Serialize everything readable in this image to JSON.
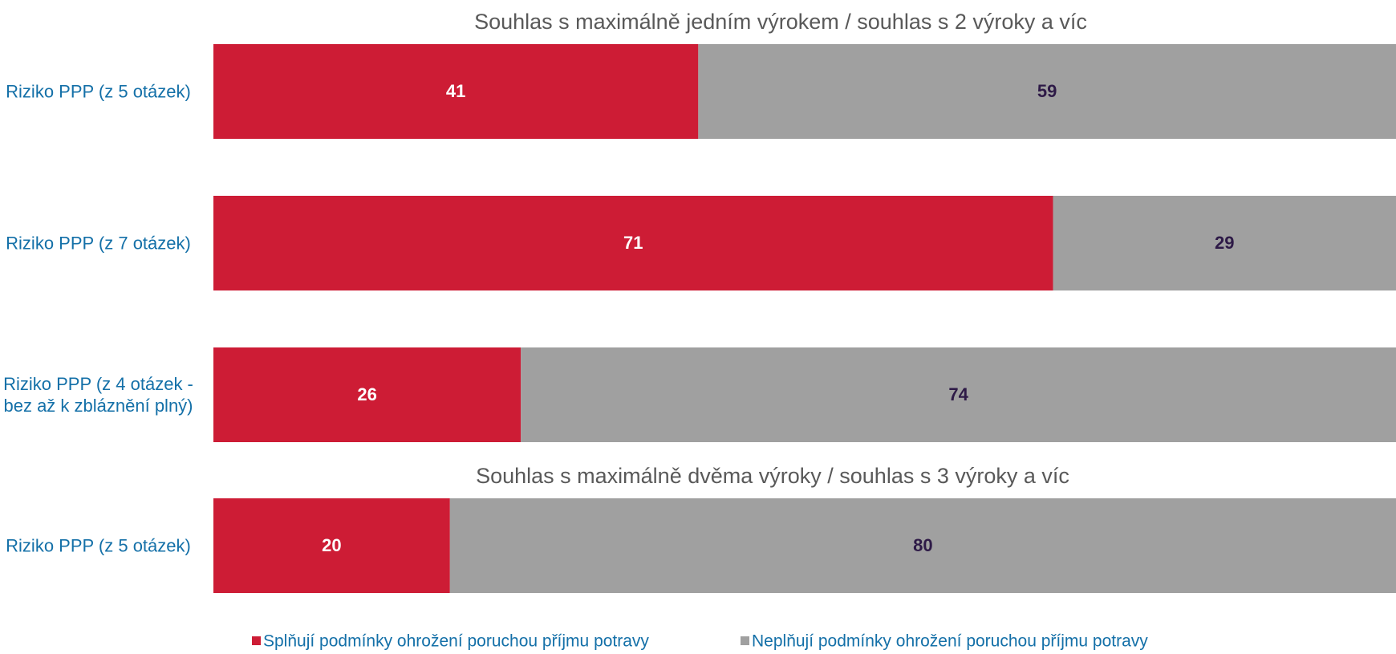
{
  "chart_data": {
    "type": "bar",
    "orientation": "horizontal",
    "stacked": true,
    "categories": [
      "Riziko PPP (z 5 otázek)",
      "Riziko PPP (z 7 otázek)",
      "Riziko PPP (z 4 otázek - bez až k zbláznění plný)",
      "Riziko PPP (z 5 otázek)"
    ],
    "series": [
      {
        "name": "Splňují podmínky ohrožení poruchou příjmu potravy",
        "color": "#cd1c35",
        "label_color": "#ffffff",
        "values": [
          41,
          71,
          26,
          20
        ]
      },
      {
        "name": "Neplňují podmínky ohrožení poruchou příjmu potravy",
        "color": "#a0a0a0",
        "label_color": "#2e1a47",
        "values": [
          59,
          29,
          74,
          80
        ]
      }
    ],
    "annotations": [
      {
        "text": "Souhlas s maximálně jedním výrokem / souhlas s 2 výroky a víc",
        "before_category": 0
      },
      {
        "text": "Souhlas s maximálně dvěma výroky / souhlas s 3 výroky a víc",
        "before_category": 3
      }
    ],
    "xlim": [
      0,
      100
    ],
    "legend": "bottom"
  }
}
